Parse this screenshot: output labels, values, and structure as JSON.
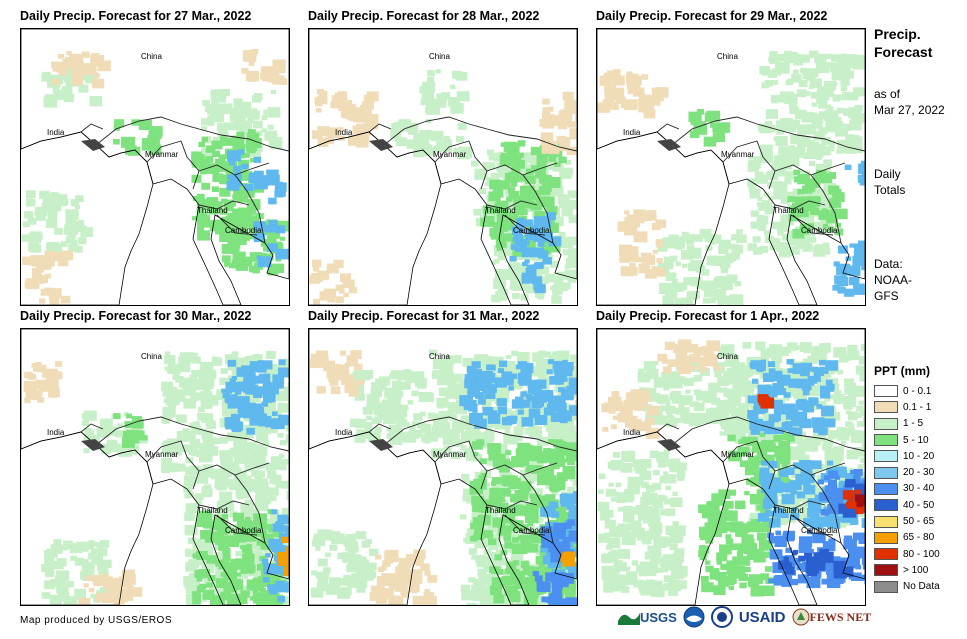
{
  "panels": [
    {
      "title": "Daily Precip. Forecast for 27 Mar., 2022",
      "precip": [
        [
          "#c8f0c8",
          [
            [
              20,
              30,
              50,
              40
            ],
            [
              0,
              160,
              60,
              60
            ],
            [
              180,
              60,
              70,
              60
            ]
          ]
        ],
        [
          "#7ee27e",
          [
            [
              170,
              100,
              60,
              110
            ],
            [
              90,
              90,
              40,
              30
            ],
            [
              200,
              180,
              60,
              60
            ]
          ]
        ],
        [
          "#5fb8ee",
          [
            [
              205,
              120,
              30,
              40
            ],
            [
              230,
              190,
              25,
              40
            ],
            [
              240,
              140,
              20,
              30
            ]
          ]
        ],
        [
          "#f0ddb8",
          [
            [
              30,
              20,
              50,
              30
            ],
            [
              0,
              220,
              40,
              50
            ],
            [
              220,
              20,
              40,
              30
            ]
          ]
        ]
      ]
    },
    {
      "title": "Daily Precip. Forecast for 28 Mar., 2022",
      "precip": [
        [
          "#c8f0c8",
          [
            [
              110,
              40,
              40,
              40
            ],
            [
              80,
              90,
              70,
              30
            ],
            [
              160,
              120,
              100,
              70
            ],
            [
              180,
              200,
              80,
              70
            ]
          ]
        ],
        [
          "#7ee27e",
          [
            [
              170,
              150,
              70,
              70
            ],
            [
              190,
              110,
              60,
              40
            ]
          ]
        ],
        [
          "#5fb8ee",
          [
            [
              200,
              180,
              40,
              50
            ],
            [
              210,
              230,
              20,
              30
            ]
          ]
        ],
        [
          "#f0ddb8",
          [
            [
              0,
              60,
              60,
              50
            ],
            [
              0,
              230,
              40,
              40
            ],
            [
              230,
              60,
              40,
              60
            ]
          ]
        ]
      ]
    },
    {
      "title": "Daily Precip. Forecast for 29 Mar., 2022",
      "precip": [
        [
          "#c8f0c8",
          [
            [
              160,
              20,
              100,
              100
            ],
            [
              150,
              120,
              80,
              100
            ],
            [
              60,
              200,
              80,
              70
            ]
          ]
        ],
        [
          "#7ee27e",
          [
            [
              190,
              140,
              50,
              60
            ],
            [
              90,
              80,
              30,
              30
            ]
          ]
        ],
        [
          "#5fb8ee",
          [
            [
              235,
              210,
              30,
              50
            ],
            [
              245,
              130,
              20,
              20
            ]
          ]
        ],
        [
          "#f0ddb8",
          [
            [
              0,
              40,
              60,
              40
            ],
            [
              20,
              180,
              40,
              60
            ]
          ]
        ]
      ]
    },
    {
      "title": "Daily Precip. Forecast for 30 Mar., 2022",
      "precip": [
        [
          "#c8f0c8",
          [
            [
              140,
              20,
              130,
              120
            ],
            [
              160,
              140,
              110,
              130
            ],
            [
              20,
              210,
              60,
              60
            ],
            [
              60,
              80,
              60,
              40
            ]
          ]
        ],
        [
          "#7ee27e",
          [
            [
              170,
              180,
              90,
              90
            ],
            [
              90,
              80,
              30,
              30
            ]
          ]
        ],
        [
          "#5fb8ee",
          [
            [
              200,
              30,
              60,
              70
            ],
            [
              240,
              180,
              28,
              90
            ]
          ]
        ],
        [
          "#f5a000",
          [
            [
              255,
              200,
              12,
              40
            ]
          ]
        ],
        [
          "#f0ddb8",
          [
            [
              0,
              30,
              40,
              40
            ],
            [
              50,
              240,
              60,
              30
            ]
          ]
        ]
      ]
    },
    {
      "title": "Daily Precip. Forecast for 31 Mar., 2022",
      "precip": [
        [
          "#c8f0c8",
          [
            [
              40,
              40,
              80,
              70
            ],
            [
              120,
              20,
              150,
              110
            ],
            [
              150,
              140,
              120,
              136
            ],
            [
              0,
              200,
              60,
              60
            ]
          ]
        ],
        [
          "#7ee27e",
          [
            [
              160,
              110,
              100,
              100
            ],
            [
              180,
              210,
              80,
              60
            ]
          ]
        ],
        [
          "#5fb8ee",
          [
            [
              150,
              30,
              110,
              60
            ],
            [
              230,
              160,
              35,
              90
            ]
          ]
        ],
        [
          "#4b8ff0",
          [
            [
              230,
              190,
              30,
              40
            ],
            [
              220,
              240,
              40,
              30
            ]
          ]
        ],
        [
          "#f5a000",
          [
            [
              250,
              220,
              10,
              8
            ]
          ]
        ],
        [
          "#f0ddb8",
          [
            [
              0,
              20,
              50,
              40
            ],
            [
              60,
              220,
              60,
              50
            ]
          ]
        ]
      ]
    },
    {
      "title": "Daily Precip. Forecast for 1 Apr., 2022",
      "precip": [
        [
          "#c8f0c8",
          [
            [
              40,
              30,
              100,
              60
            ],
            [
              120,
              10,
              150,
              100
            ],
            [
              0,
              120,
              80,
              140
            ],
            [
              150,
              110,
              120,
              80
            ]
          ]
        ],
        [
          "#7ee27e",
          [
            [
              130,
              100,
              60,
              50
            ],
            [
              100,
              160,
              70,
              100
            ]
          ]
        ],
        [
          "#5fb8ee",
          [
            [
              150,
              30,
              80,
              70
            ],
            [
              160,
              130,
              110,
              60
            ]
          ]
        ],
        [
          "#4b8ff0",
          [
            [
              170,
              200,
              100,
              50
            ],
            [
              220,
              140,
              48,
              40
            ]
          ]
        ],
        [
          "#2a5fd0",
          [
            [
              180,
              220,
              70,
              20
            ],
            [
              240,
              150,
              28,
              30
            ]
          ]
        ],
        [
          "#e03000",
          [
            [
              245,
              160,
              20,
              20
            ],
            [
              160,
              65,
              4,
              10
            ]
          ]
        ],
        [
          "#a01010",
          [
            [
              250,
              165,
              12,
              10
            ]
          ]
        ],
        [
          "#f0ddb8",
          [
            [
              0,
              60,
              50,
              40
            ],
            [
              60,
              10,
              60,
              30
            ]
          ]
        ]
      ]
    }
  ],
  "labels": {
    "china": "China",
    "india": "India",
    "myanmar": "Myanmar",
    "thailand": "Thailand",
    "cambodia": "Cambodia"
  },
  "sidebar": {
    "title_line1": "Precip.",
    "title_line2": "Forecast",
    "asof_line1": "as of",
    "asof_line2": "Mar 27, 2022",
    "totals_line1": "Daily",
    "totals_line2": "Totals",
    "data_line1": "Data:",
    "data_line2": "NOAA-",
    "data_line3": "GFS"
  },
  "legend": {
    "title": "PPT (mm)",
    "items": [
      {
        "label": "0 - 0.1",
        "color": "#ffffff"
      },
      {
        "label": "0.1 - 1",
        "color": "#f0ddb8"
      },
      {
        "label": "1 - 5",
        "color": "#c8f0c8"
      },
      {
        "label": "5 - 10",
        "color": "#7ee27e"
      },
      {
        "label": "10 - 20",
        "color": "#b8f0f8"
      },
      {
        "label": "20 - 30",
        "color": "#7ec8f0"
      },
      {
        "label": "30 - 40",
        "color": "#4b8ff0"
      },
      {
        "label": "40 - 50",
        "color": "#2a5fd0"
      },
      {
        "label": "50 - 65",
        "color": "#f8e070"
      },
      {
        "label": "65 - 80",
        "color": "#f5a000"
      },
      {
        "label": "80 - 100",
        "color": "#e03000"
      },
      {
        "label": "> 100",
        "color": "#a01010"
      },
      {
        "label": "No Data",
        "color": "#8c8c8c"
      }
    ]
  },
  "credit": "Map produced by USGS/EROS",
  "logos": {
    "usgs": "USGS",
    "usaid": "USAID",
    "fews": "FEWS NET"
  }
}
